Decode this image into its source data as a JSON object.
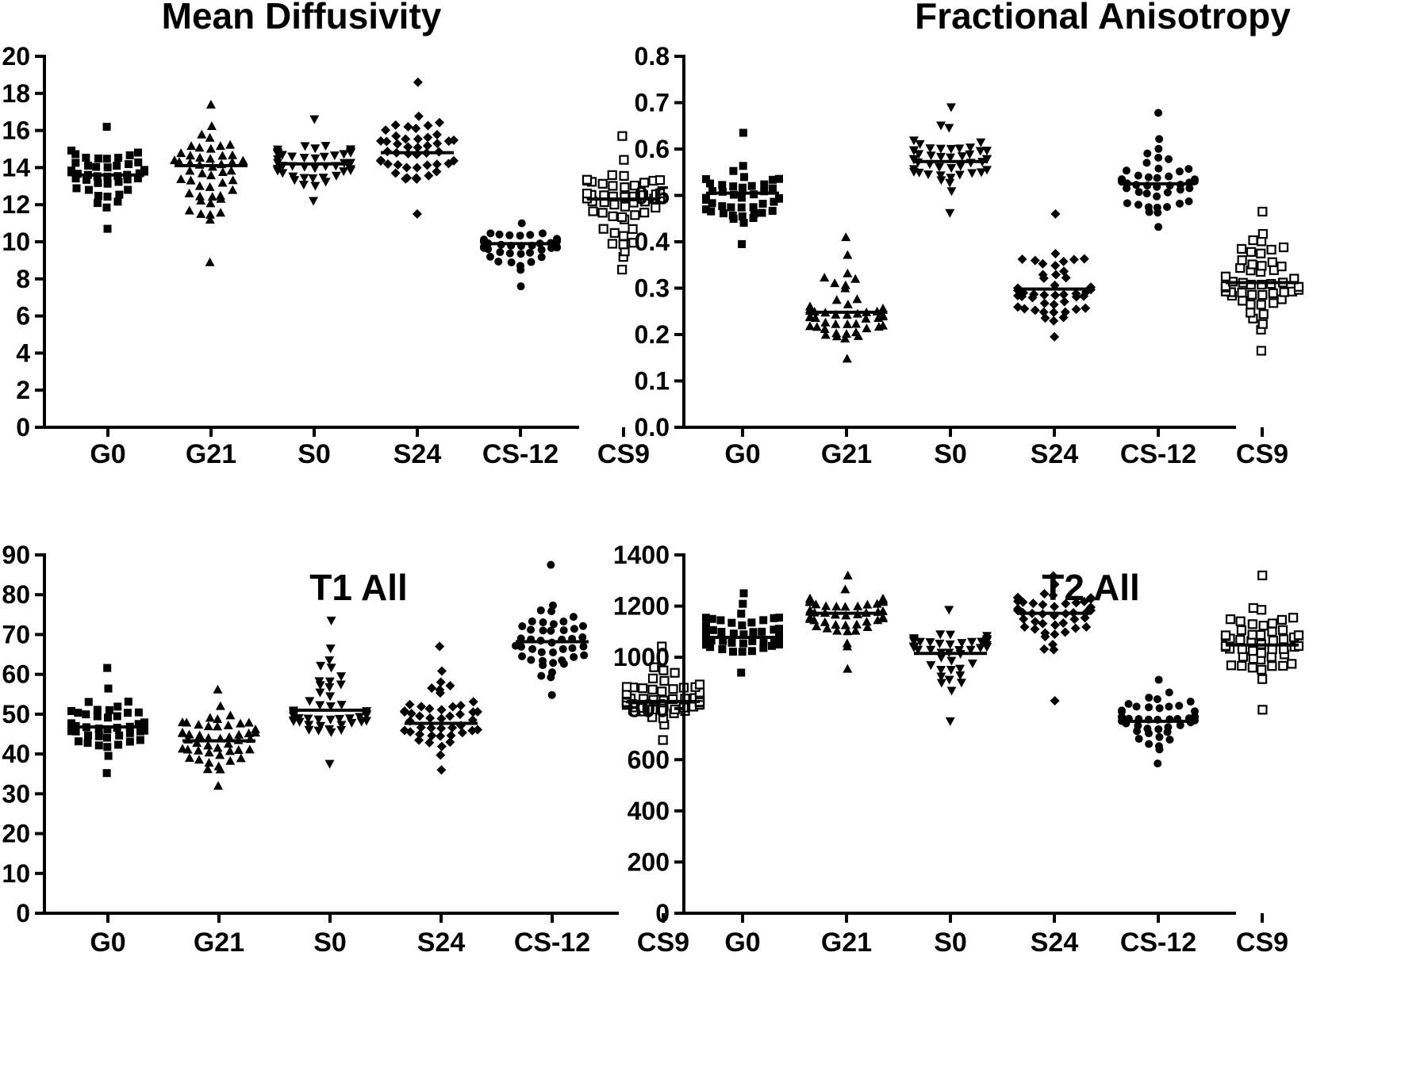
{
  "chart_data": [
    {
      "type": "scatter",
      "title": "Mean Diffusivity",
      "xlabel": "",
      "ylabel": "",
      "categories": [
        "G0",
        "G21",
        "S0",
        "S24",
        "CS-12",
        "CS9"
      ],
      "ylim": [
        0,
        20
      ],
      "yticks": [
        0,
        2,
        4,
        6,
        8,
        10,
        12,
        14,
        16,
        18,
        20
      ],
      "grid": false,
      "series": [
        {
          "marker": "square",
          "mean": 13.6,
          "min": 10.7,
          "max": 16.2,
          "n": 44
        },
        {
          "marker": "triangle-up",
          "mean": 14.1,
          "min": 8.9,
          "max": 17.4,
          "n": 48
        },
        {
          "marker": "triangle-down",
          "mean": 14.2,
          "min": 12.2,
          "max": 16.6,
          "n": 46
        },
        {
          "marker": "diamond",
          "mean": 14.8,
          "min": 11.5,
          "max": 18.6,
          "n": 46
        },
        {
          "marker": "circle",
          "mean": 9.9,
          "min": 7.6,
          "max": 11.0,
          "n": 44
        },
        {
          "marker": "open-square",
          "mean": 12.3,
          "min": 8.5,
          "max": 15.7,
          "n": 50
        }
      ]
    },
    {
      "type": "scatter",
      "title": "Fractional Anisotropy",
      "xlabel": "",
      "ylabel": "",
      "categories": [
        "G0",
        "G21",
        "S0",
        "S24",
        "CS-12",
        "CS9"
      ],
      "ylim": [
        0,
        0.8
      ],
      "yticks": [
        "0.0",
        "0.1",
        "0.2",
        "0.3",
        "0.4",
        "0.5",
        "0.6",
        "0.7",
        "0.8"
      ],
      "grid": false,
      "series": [
        {
          "marker": "square",
          "mean": 0.505,
          "min": 0.395,
          "max": 0.635,
          "n": 44
        },
        {
          "marker": "triangle-up",
          "mean": 0.248,
          "min": 0.148,
          "max": 0.41,
          "n": 48
        },
        {
          "marker": "triangle-down",
          "mean": 0.573,
          "min": 0.462,
          "max": 0.69,
          "n": 46
        },
        {
          "marker": "diamond",
          "mean": 0.298,
          "min": 0.195,
          "max": 0.46,
          "n": 46
        },
        {
          "marker": "circle",
          "mean": 0.525,
          "min": 0.432,
          "max": 0.678,
          "n": 44
        },
        {
          "marker": "open-square",
          "mean": 0.312,
          "min": 0.165,
          "max": 0.465,
          "n": 50
        }
      ]
    },
    {
      "type": "scatter",
      "title": "T1 All",
      "xlabel": "",
      "ylabel": "",
      "categories": [
        "G0",
        "G21",
        "S0",
        "S24",
        "CS-12",
        "CS9"
      ],
      "ylim": [
        0,
        90
      ],
      "yticks": [
        0,
        10,
        20,
        30,
        40,
        50,
        60,
        70,
        80,
        90
      ],
      "grid": false,
      "series": [
        {
          "marker": "square",
          "mean": 46.8,
          "min": 35.2,
          "max": 61.6,
          "n": 44
        },
        {
          "marker": "triangle-up",
          "mean": 43.3,
          "min": 32.0,
          "max": 56.2,
          "n": 48
        },
        {
          "marker": "triangle-down",
          "mean": 51.0,
          "min": 37.5,
          "max": 73.5,
          "n": 46
        },
        {
          "marker": "diamond",
          "mean": 47.7,
          "min": 36.0,
          "max": 67.0,
          "n": 46
        },
        {
          "marker": "circle",
          "mean": 68.2,
          "min": 54.8,
          "max": 87.5,
          "n": 44
        },
        {
          "marker": "open-square",
          "mean": 53.2,
          "min": 43.5,
          "max": 67.0,
          "n": 50
        }
      ]
    },
    {
      "type": "scatter",
      "title": "T2 All",
      "xlabel": "",
      "ylabel": "",
      "categories": [
        "G0",
        "G21",
        "S0",
        "S24",
        "CS-12",
        "CS9"
      ],
      "ylim": [
        0,
        1400
      ],
      "yticks": [
        0,
        200,
        400,
        600,
        800,
        1000,
        1200,
        1400
      ],
      "grid": false,
      "series": [
        {
          "marker": "square",
          "mean": 1078,
          "min": 940,
          "max": 1250,
          "n": 44
        },
        {
          "marker": "triangle-up",
          "mean": 1172,
          "min": 955,
          "max": 1320,
          "n": 48
        },
        {
          "marker": "triangle-down",
          "mean": 1015,
          "min": 750,
          "max": 1185,
          "n": 46
        },
        {
          "marker": "diamond",
          "mean": 1172,
          "min": 830,
          "max": 1318,
          "n": 46
        },
        {
          "marker": "circle",
          "mean": 750,
          "min": 585,
          "max": 912,
          "n": 44
        },
        {
          "marker": "open-square",
          "mean": 1048,
          "min": 795,
          "max": 1320,
          "n": 50
        }
      ]
    }
  ]
}
